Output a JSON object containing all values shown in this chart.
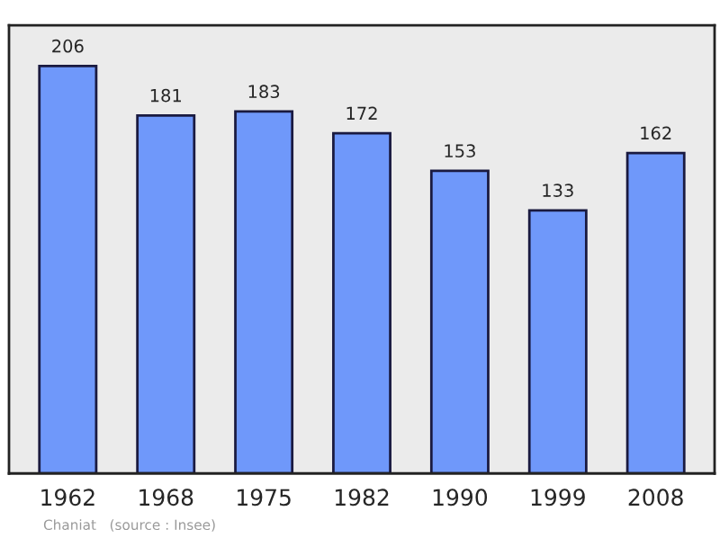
{
  "chart_data": {
    "type": "bar",
    "categories": [
      "1962",
      "1968",
      "1975",
      "1982",
      "1990",
      "1999",
      "2008"
    ],
    "values": [
      206,
      181,
      183,
      172,
      153,
      133,
      162
    ],
    "color": "#6f98fa",
    "data_labels": true,
    "grid": false,
    "annotations": [
      "Chaniat   (source : Insee)"
    ]
  }
}
